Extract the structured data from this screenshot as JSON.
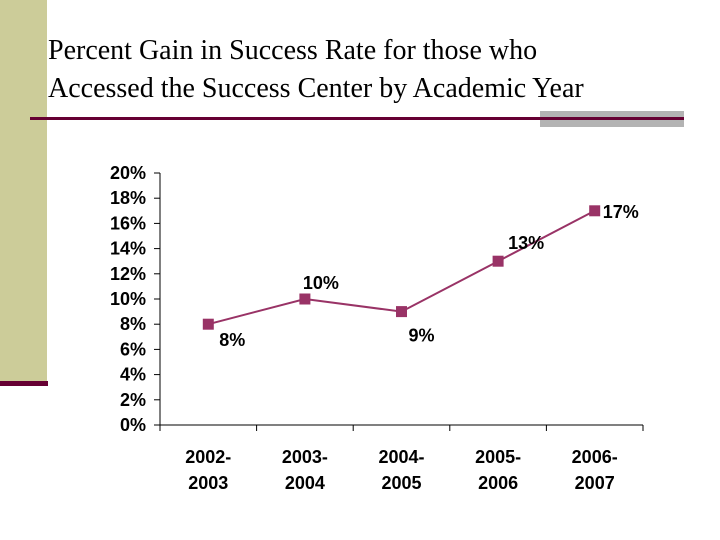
{
  "slide": {
    "title_line1": "Percent Gain in Success Rate for those who",
    "title_line2": "Accessed the Success Center by Academic Year"
  },
  "colors": {
    "band": "#cccc99",
    "accent": "#660033",
    "series": "#993366"
  },
  "chart_data": {
    "type": "line",
    "title": "",
    "xlabel": "",
    "ylabel": "",
    "ylim": [
      0,
      20
    ],
    "yticks": [
      "0%",
      "2%",
      "4%",
      "6%",
      "8%",
      "10%",
      "12%",
      "14%",
      "16%",
      "18%",
      "20%"
    ],
    "categories": [
      [
        "2002-",
        "2003"
      ],
      [
        "2003-",
        "2004"
      ],
      [
        "2004-",
        "2005"
      ],
      [
        "2005-",
        "2006"
      ],
      [
        "2006-",
        "2007"
      ]
    ],
    "values": [
      8,
      10,
      9,
      13,
      17
    ],
    "data_labels": [
      "8%",
      "10%",
      "9%",
      "13%",
      "17%"
    ],
    "marker": "square",
    "grid": false,
    "legend": "none"
  }
}
